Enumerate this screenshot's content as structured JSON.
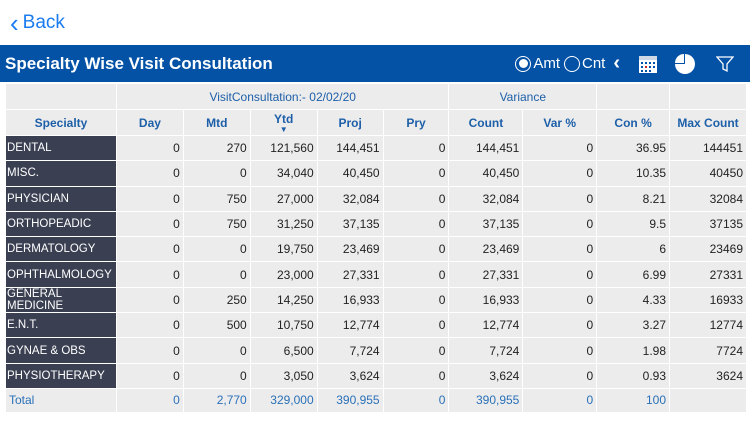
{
  "nav": {
    "back_label": "Back"
  },
  "header": {
    "title": "Specialty Wise Visit Consultation",
    "radio_amt": "Amt",
    "radio_cnt": "Cnt",
    "selected": "Amt",
    "icons": [
      "chevron-left-icon",
      "calendar-icon",
      "pie-chart-icon",
      "filter-icon"
    ]
  },
  "table": {
    "group_headers": {
      "main": "VisitConsultation:- 02/02/20",
      "variance": "Variance"
    },
    "columns": [
      "Specialty",
      "Day",
      "Mtd",
      "Ytd",
      "Proj",
      "Pry",
      "Count",
      "Var %",
      "Con %",
      "Max Count"
    ],
    "sorted_column": "Ytd",
    "rows": [
      [
        "DENTAL",
        "0",
        "270",
        "121,560",
        "144,451",
        "0",
        "144,451",
        "0",
        "36.95",
        "144451"
      ],
      [
        "MISC.",
        "0",
        "0",
        "34,040",
        "40,450",
        "0",
        "40,450",
        "0",
        "10.35",
        "40450"
      ],
      [
        "PHYSICIAN",
        "0",
        "750",
        "27,000",
        "32,084",
        "0",
        "32,084",
        "0",
        "8.21",
        "32084"
      ],
      [
        "ORTHOPEADIC",
        "0",
        "750",
        "31,250",
        "37,135",
        "0",
        "37,135",
        "0",
        "9.5",
        "37135"
      ],
      [
        "DERMATOLOGY",
        "0",
        "0",
        "19,750",
        "23,469",
        "0",
        "23,469",
        "0",
        "6",
        "23469"
      ],
      [
        "OPHTHALMOLOGY",
        "0",
        "0",
        "23,000",
        "27,331",
        "0",
        "27,331",
        "0",
        "6.99",
        "27331"
      ],
      [
        "GENERAL MEDICINE",
        "0",
        "250",
        "14,250",
        "16,933",
        "0",
        "16,933",
        "0",
        "4.33",
        "16933"
      ],
      [
        "E.N.T.",
        "0",
        "500",
        "10,750",
        "12,774",
        "0",
        "12,774",
        "0",
        "3.27",
        "12774"
      ],
      [
        "GYNAE & OBS",
        "0",
        "0",
        "6,500",
        "7,724",
        "0",
        "7,724",
        "0",
        "1.98",
        "7724"
      ],
      [
        "PHYSIOTHERAPY",
        "0",
        "0",
        "3,050",
        "3,624",
        "0",
        "3,624",
        "0",
        "0.93",
        "3624"
      ]
    ],
    "total": [
      "Total",
      "0",
      "2,770",
      "329,000",
      "390,955",
      "0",
      "390,955",
      "0",
      "100",
      ""
    ]
  }
}
